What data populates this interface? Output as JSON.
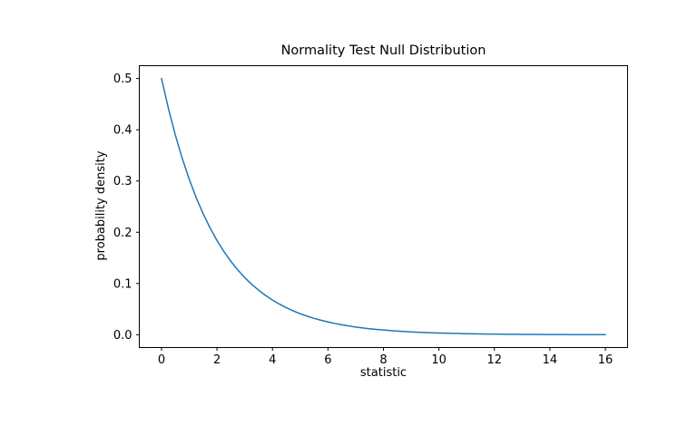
{
  "chart_data": {
    "type": "line",
    "title": "Normality Test Null Distribution",
    "xlabel": "statistic",
    "ylabel": "probability density",
    "grid": false,
    "legend": null,
    "line_color": "#1f77b4",
    "line_width": 1.5,
    "frame_color": "#000000",
    "background_color": "#ffffff",
    "xlim": [
      -0.8,
      16.8
    ],
    "ylim": [
      -0.025,
      0.525
    ],
    "xticks": [
      0,
      2,
      4,
      6,
      8,
      10,
      12,
      14,
      16
    ],
    "xtick_labels": [
      "0",
      "2",
      "4",
      "6",
      "8",
      "10",
      "12",
      "14",
      "16"
    ],
    "yticks": [
      0.0,
      0.1,
      0.2,
      0.3,
      0.4,
      0.5
    ],
    "ytick_labels": [
      "0.0",
      "0.1",
      "0.2",
      "0.3",
      "0.4",
      "0.5"
    ],
    "x": [
      0,
      0.25,
      0.5,
      0.75,
      1,
      1.25,
      1.5,
      1.75,
      2,
      2.25,
      2.5,
      2.75,
      3,
      3.25,
      3.5,
      3.75,
      4,
      4.25,
      4.5,
      4.75,
      5,
      5.25,
      5.5,
      5.75,
      6,
      6.25,
      6.5,
      6.75,
      7,
      7.25,
      7.5,
      7.75,
      8,
      8.25,
      8.5,
      8.75,
      9,
      9.25,
      9.5,
      9.75,
      10,
      10.25,
      10.5,
      10.75,
      11,
      11.25,
      11.5,
      11.75,
      12,
      12.25,
      12.5,
      12.75,
      13,
      13.25,
      13.5,
      13.75,
      14,
      14.25,
      14.5,
      14.75,
      15,
      15.25,
      15.5,
      15.75,
      16
    ],
    "y": [
      0.5,
      0.44125,
      0.3894,
      0.34364,
      0.30327,
      0.26763,
      0.23618,
      0.20843,
      0.18394,
      0.16233,
      0.14325,
      0.12642,
      0.11157,
      0.09846,
      0.08689,
      0.07668,
      0.06767,
      0.05972,
      0.0527,
      0.04651,
      0.04104,
      0.03622,
      0.03196,
      0.02821,
      0.02489,
      0.02197,
      0.01939,
      0.01711,
      0.0151,
      0.01332,
      0.01176,
      0.01038,
      0.00916,
      0.00808,
      0.00713,
      0.00629,
      0.00555,
      0.0049,
      0.00433,
      0.00382,
      0.00337,
      0.00297,
      0.00262,
      0.00231,
      0.00204,
      0.0018,
      0.00159,
      0.0014,
      0.00124,
      0.00109,
      0.00096,
      0.00085,
      0.00075,
      0.00066,
      0.00058,
      0.00052,
      0.00046,
      0.0004,
      0.00036,
      0.00031,
      0.00028,
      0.00024,
      0.00022,
      0.00019,
      0.00017
    ]
  }
}
